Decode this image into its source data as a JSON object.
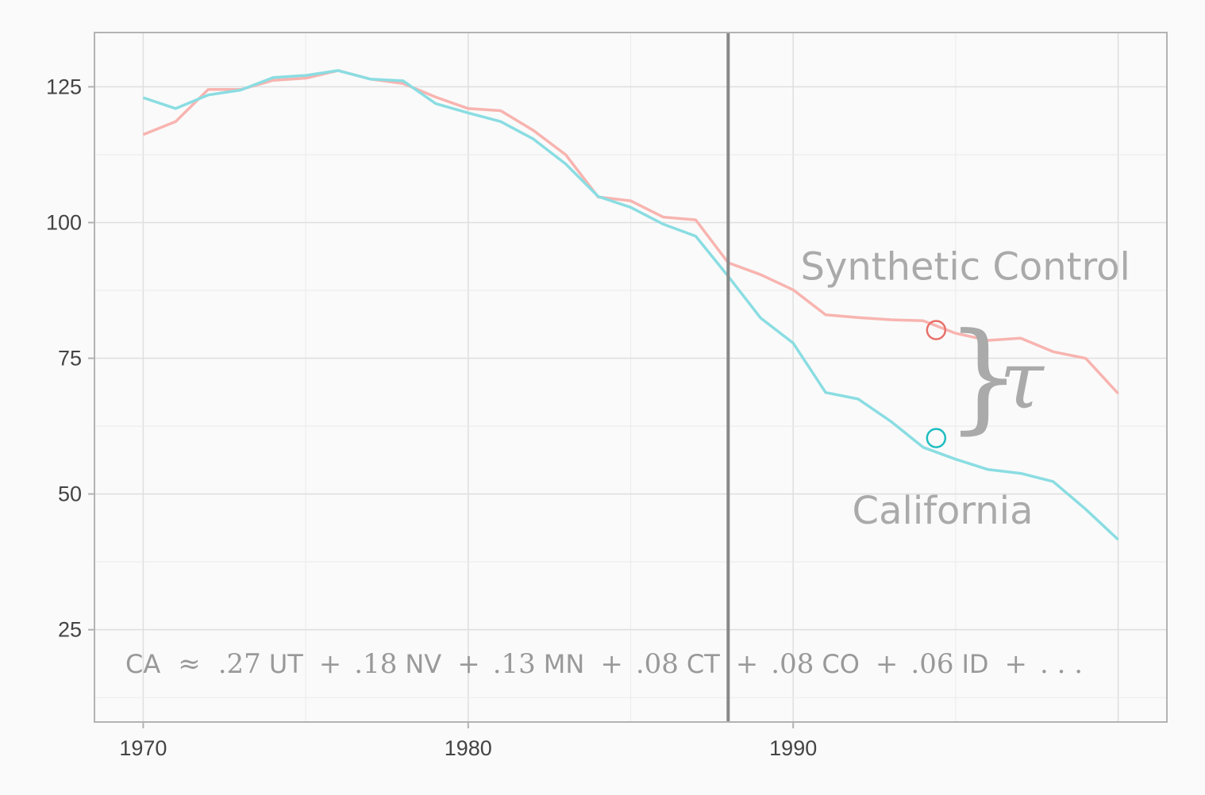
{
  "chart_data": {
    "type": "line",
    "x_ticks": [
      1970,
      1980,
      1990
    ],
    "y_ticks": [
      25,
      50,
      75,
      100,
      125
    ],
    "xlim": [
      1968.5,
      2001.5
    ],
    "ylim": [
      8,
      135
    ],
    "grid": true,
    "treatment_year": 1988,
    "x": [
      1970,
      1971,
      1972,
      1973,
      1974,
      1975,
      1976,
      1977,
      1978,
      1979,
      1980,
      1981,
      1982,
      1983,
      1984,
      1985,
      1986,
      1987,
      1988,
      1989,
      1990,
      1991,
      1992,
      1993,
      1994,
      1995,
      1996,
      1997,
      1998,
      1999,
      2000
    ],
    "series": [
      {
        "name": "Synthetic Control",
        "color": "#f8b4b0",
        "values": [
          116.2,
          118.6,
          124.5,
          124.5,
          126.2,
          126.6,
          128.0,
          126.4,
          125.6,
          123.1,
          121.0,
          120.6,
          117.0,
          112.5,
          104.7,
          104.0,
          101.0,
          100.5,
          92.6,
          90.4,
          87.6,
          83.0,
          82.5,
          82.1,
          81.9,
          79.6,
          78.3,
          78.7,
          76.2,
          75.0,
          68.5
        ]
      },
      {
        "name": "California",
        "color": "#8adde2",
        "values": [
          123.0,
          121.0,
          123.5,
          124.4,
          126.7,
          127.1,
          128.0,
          126.4,
          126.1,
          121.9,
          120.2,
          118.6,
          115.4,
          110.8,
          104.8,
          102.8,
          99.7,
          97.5,
          90.1,
          82.4,
          77.8,
          68.7,
          67.5,
          63.4,
          58.6,
          56.4,
          54.5,
          53.8,
          52.3,
          47.2,
          41.6
        ]
      }
    ],
    "annotation": {
      "x": 1994.4,
      "synthetic_value": 80.2,
      "california_value": 60.3,
      "synthetic_marker_color": "#e8706a",
      "california_marker_color": "#1fbdc0",
      "effect_symbol": "τ"
    },
    "labels": {
      "synthetic": {
        "text": "Synthetic Control",
        "x": 1995.3,
        "y": 89.5
      },
      "california": {
        "text": "California",
        "x": 1994.6,
        "y": 44.5
      }
    },
    "equation": {
      "lhs": "CA",
      "approx": "≈",
      "terms": [
        {
          "weight": ".27",
          "state": "UT"
        },
        {
          "weight": ".18",
          "state": "NV"
        },
        {
          "weight": ".13",
          "state": "MN"
        },
        {
          "weight": ".08",
          "state": "CT"
        },
        {
          "weight": ".08",
          "state": "CO"
        },
        {
          "weight": ".06",
          "state": "ID"
        }
      ],
      "plus": "+",
      "ellipsis": ". . ."
    }
  }
}
